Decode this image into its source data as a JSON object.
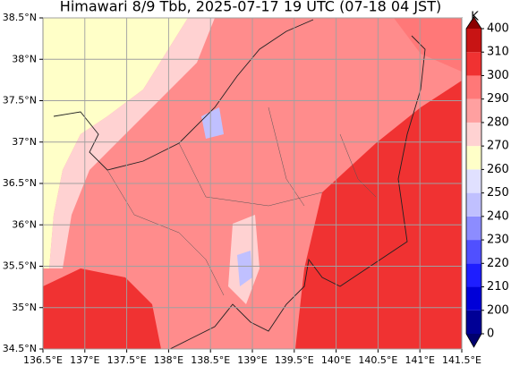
{
  "map": {
    "title": "Himawari 8/9 Tbb, 2025-07-17 19 UTC (07-18 04 JST)",
    "xlim": [
      136.5,
      141.5
    ],
    "ylim": [
      34.5,
      38.5
    ],
    "grid": true,
    "xticks": [
      {
        "value": 136.5,
        "label": "136.5°E"
      },
      {
        "value": 137,
        "label": "137°E"
      },
      {
        "value": 137.5,
        "label": "137.5°E"
      },
      {
        "value": 138,
        "label": "138°E"
      },
      {
        "value": 138.5,
        "label": "138.5°E"
      },
      {
        "value": 139,
        "label": "139°E"
      },
      {
        "value": 139.5,
        "label": "139.5°E"
      },
      {
        "value": 140,
        "label": "140°E"
      },
      {
        "value": 140.5,
        "label": "140.5°E"
      },
      {
        "value": 141,
        "label": "141°E"
      },
      {
        "value": 141.5,
        "label": "141.5°E"
      }
    ],
    "yticks": [
      {
        "value": 34.5,
        "label": "34.5°N"
      },
      {
        "value": 35,
        "label": "35°N"
      },
      {
        "value": 35.5,
        "label": "35.5°N"
      },
      {
        "value": 36,
        "label": "36°N"
      },
      {
        "value": 36.5,
        "label": "36.5°N"
      },
      {
        "value": 37,
        "label": "37°N"
      },
      {
        "value": 37.5,
        "label": "37.5°N"
      },
      {
        "value": 38,
        "label": "38°N"
      },
      {
        "value": 38.5,
        "label": "38.5°N"
      }
    ]
  },
  "colorbar": {
    "label": "K",
    "levels": [
      0,
      200,
      210,
      220,
      230,
      240,
      250,
      260,
      270,
      280,
      290,
      300,
      310,
      400
    ],
    "colors": [
      "#000096",
      "#0000d8",
      "#1e1eff",
      "#5050ff",
      "#8c8cff",
      "#c0c0ff",
      "#e0e0ff",
      "#ffffc8",
      "#ffd2d2",
      "#ffa0a0",
      "#ff7878",
      "#f03232",
      "#c81414"
    ],
    "extend_colors": [
      "#00006e",
      "#8c0000"
    ]
  }
}
